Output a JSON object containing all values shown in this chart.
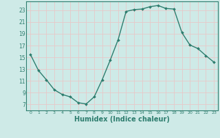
{
  "x": [
    0,
    1,
    2,
    3,
    4,
    5,
    6,
    7,
    8,
    9,
    10,
    11,
    12,
    13,
    14,
    15,
    16,
    17,
    18,
    19,
    20,
    21,
    22,
    23
  ],
  "y": [
    15.5,
    12.8,
    11.2,
    9.5,
    8.7,
    8.3,
    7.3,
    7.1,
    8.3,
    11.2,
    14.5,
    18.0,
    22.8,
    23.1,
    23.2,
    23.6,
    23.8,
    23.3,
    23.2,
    19.2,
    17.1,
    16.5,
    15.3,
    14.2
  ],
  "line_color": "#2d7d6e",
  "marker": "D",
  "marker_size": 2.0,
  "line_width": 1.0,
  "bg_color": "#ceeae7",
  "grid_color": "#e8c8c8",
  "tick_label_color": "#2d7d6e",
  "xlabel": "Humidex (Indice chaleur)",
  "xlabel_fontsize": 7.0,
  "xlabel_color": "#2d7d6e",
  "ylabel_ticks": [
    7,
    9,
    11,
    13,
    15,
    17,
    19,
    21,
    23
  ],
  "xlim": [
    -0.5,
    23.5
  ],
  "ylim": [
    6.0,
    24.5
  ],
  "xticks": [
    0,
    1,
    2,
    3,
    4,
    5,
    6,
    7,
    8,
    9,
    10,
    11,
    12,
    13,
    14,
    15,
    16,
    17,
    18,
    19,
    20,
    21,
    22,
    23
  ],
  "grid_lw": 0.6,
  "panel_border_color": "#2d7d6e"
}
